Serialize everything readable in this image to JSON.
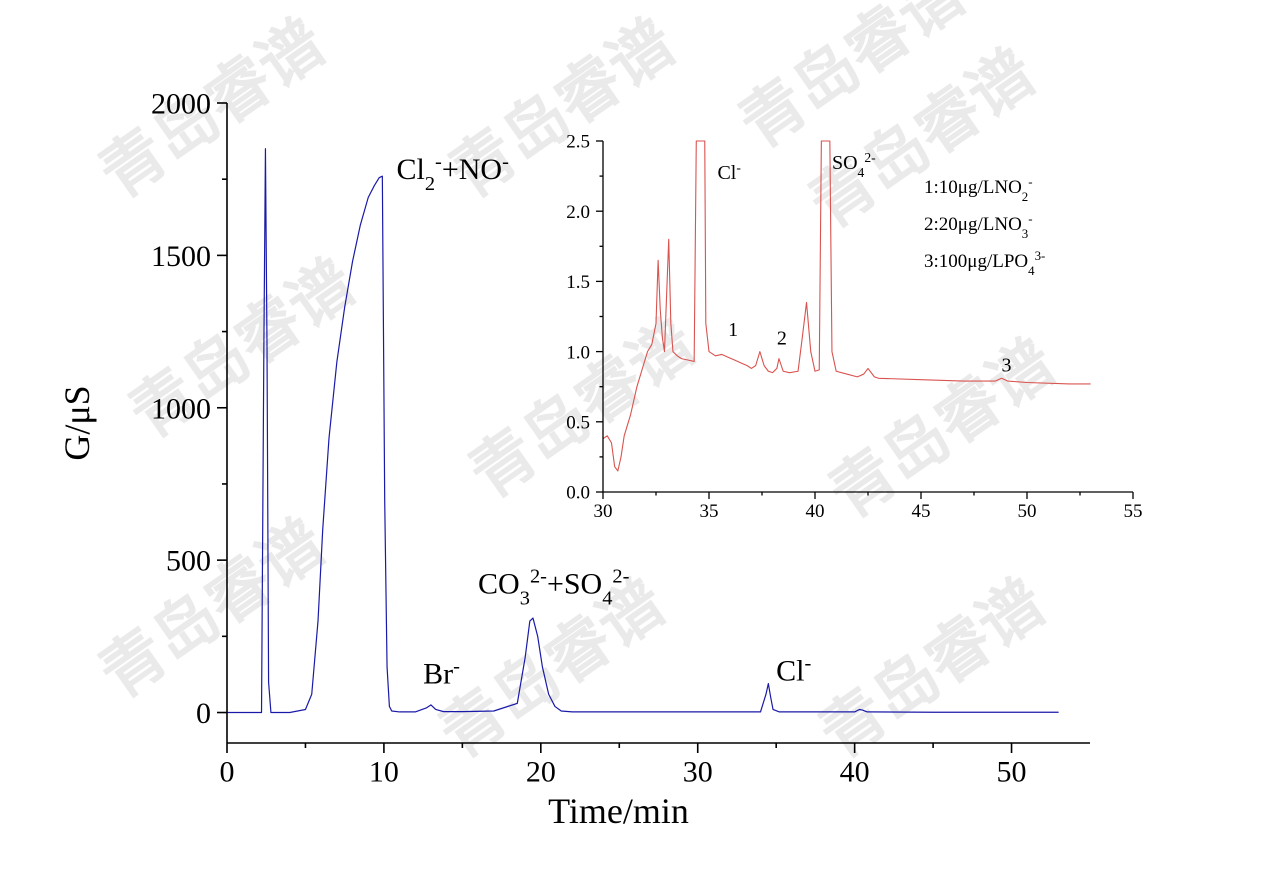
{
  "watermark": "青岛睿谱",
  "chart_data": [
    {
      "type": "line",
      "xlabel": "Time/min",
      "ylabel": "G/μS",
      "xlim": [
        0,
        55
      ],
      "ylim": [
        -100,
        2000
      ],
      "xticks": [
        0,
        10,
        20,
        30,
        40,
        50
      ],
      "yticks": [
        0,
        500,
        1000,
        1500,
        2000
      ],
      "series_color": "#1a1aa8",
      "series": [
        {
          "x": [
            0.0,
            2.2,
            2.35,
            2.45,
            2.55,
            2.65,
            2.8,
            3.0,
            4.0,
            5.0,
            5.4,
            5.8,
            6.1,
            6.5,
            7.0,
            7.5,
            8.0,
            8.5,
            9.0,
            9.4,
            9.7,
            9.9,
            10.05,
            10.2,
            10.35,
            10.5,
            11.0,
            12.0,
            12.7,
            13.0,
            13.3,
            13.8,
            15.0,
            17.0,
            18.5,
            19.0,
            19.3,
            19.5,
            19.8,
            20.1,
            20.5,
            20.9,
            21.3,
            22.0,
            25.0,
            30.0,
            34.0,
            34.35,
            34.5,
            34.65,
            34.8,
            35.2,
            40.0,
            40.3,
            40.5,
            40.8,
            45.0,
            50.0,
            53.0
          ],
          "y": [
            0,
            0,
            1200,
            1850,
            1200,
            100,
            0,
            0,
            0,
            10,
            60,
            300,
            600,
            900,
            1150,
            1330,
            1480,
            1600,
            1690,
            1730,
            1755,
            1760,
            700,
            150,
            20,
            5,
            2,
            2,
            15,
            25,
            10,
            3,
            3,
            5,
            30,
            180,
            300,
            310,
            250,
            150,
            60,
            20,
            5,
            2,
            2,
            2,
            2,
            60,
            95,
            50,
            10,
            2,
            2,
            10,
            8,
            2,
            1,
            1,
            1
          ]
        }
      ],
      "annotations": [
        {
          "text": "Cl",
          "sup": "-",
          "text2": "+NO",
          "sub": "2",
          "sup2": "-",
          "x": 10.8,
          "y": 1750
        },
        {
          "text": "Br",
          "sup": "-",
          "x": 12.5,
          "y": 95
        },
        {
          "text": "CO",
          "sub": "3",
          "sup": "2-",
          "text2": "+SO",
          "sub2": "4",
          "sup2": "2-",
          "x": 16,
          "y": 390
        },
        {
          "text": "Cl",
          "sup": "-",
          "x": 35.0,
          "y": 105
        }
      ]
    },
    {
      "type": "line",
      "xlabel": "",
      "ylabel": "",
      "xlim": [
        30,
        55
      ],
      "ylim": [
        0,
        2.5
      ],
      "xticks": [
        30,
        35,
        40,
        45,
        50,
        55
      ],
      "yticks": [
        0.0,
        0.5,
        1.0,
        1.5,
        2.0,
        2.5
      ],
      "series_color": "#d9534f",
      "series": [
        {
          "x": [
            30.0,
            30.2,
            30.4,
            30.55,
            30.7,
            30.85,
            31.0,
            31.3,
            31.6,
            31.9,
            32.1,
            32.3,
            32.5,
            32.6,
            32.7,
            32.8,
            32.9,
            33.0,
            33.1,
            33.2,
            33.3,
            33.5,
            33.7,
            34.0,
            34.3,
            34.4,
            34.5,
            34.6,
            34.8,
            34.85,
            35.0,
            35.3,
            35.6,
            35.9,
            36.2,
            36.5,
            36.8,
            37.0,
            37.2,
            37.4,
            37.6,
            37.8,
            38.0,
            38.2,
            38.3,
            38.5,
            38.8,
            39.2,
            39.4,
            39.6,
            39.8,
            40.0,
            40.2,
            40.3,
            40.5,
            40.7,
            40.8,
            41.0,
            41.5,
            42.0,
            42.3,
            42.5,
            42.8,
            43.0,
            45.0,
            47.0,
            48.5,
            48.8,
            49.1,
            50.0,
            52.0,
            53.0
          ],
          "y": [
            0.38,
            0.4,
            0.35,
            0.18,
            0.15,
            0.25,
            0.4,
            0.55,
            0.75,
            0.9,
            1.0,
            1.05,
            1.2,
            1.65,
            1.3,
            1.1,
            1.0,
            1.4,
            1.8,
            1.2,
            1.0,
            0.97,
            0.95,
            0.94,
            0.93,
            2.5,
            2.5,
            2.5,
            2.5,
            1.2,
            1.0,
            0.97,
            0.98,
            0.96,
            0.94,
            0.92,
            0.9,
            0.88,
            0.9,
            1.0,
            0.9,
            0.86,
            0.85,
            0.88,
            0.95,
            0.86,
            0.85,
            0.86,
            1.1,
            1.35,
            1.0,
            0.86,
            0.87,
            2.5,
            2.5,
            2.5,
            1.0,
            0.86,
            0.84,
            0.82,
            0.84,
            0.88,
            0.82,
            0.81,
            0.8,
            0.79,
            0.79,
            0.81,
            0.79,
            0.78,
            0.77,
            0.77
          ]
        }
      ],
      "annotations": [
        {
          "text": "Cl",
          "sup": "-",
          "x": 35.4,
          "y": 2.23
        },
        {
          "text": "SO",
          "sub": "4",
          "sup": "2-",
          "x": 40.8,
          "y": 2.3
        },
        {
          "text": "1",
          "x": 35.9,
          "y": 1.11
        },
        {
          "text": "2",
          "x": 38.2,
          "y": 1.05
        },
        {
          "text": "3",
          "x": 48.8,
          "y": 0.86
        }
      ],
      "legend": [
        {
          "text": "1:10μg/LNO",
          "sub": "2",
          "sup": "-"
        },
        {
          "text": "2:20μg/LNO",
          "sub": "3",
          "sup": "-"
        },
        {
          "text": "3:100μg/LPO",
          "sub": "4",
          "sup": "3-"
        }
      ]
    }
  ]
}
